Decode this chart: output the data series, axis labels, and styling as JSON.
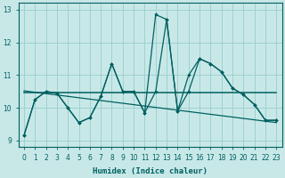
{
  "xlabel": "Humidex (Indice chaleur)",
  "xlim": [
    -0.5,
    23.5
  ],
  "ylim": [
    8.8,
    13.2
  ],
  "yticks": [
    9,
    10,
    11,
    12,
    13
  ],
  "xticks": [
    0,
    1,
    2,
    3,
    4,
    5,
    6,
    7,
    8,
    9,
    10,
    11,
    12,
    13,
    14,
    15,
    16,
    17,
    18,
    19,
    20,
    21,
    22,
    23
  ],
  "bg_color": "#c8e8e8",
  "line_color": "#006060",
  "grid_color": "#a0d0d0",
  "series1_x": [
    0,
    1,
    2,
    3,
    4,
    5,
    6,
    7,
    8,
    9,
    10,
    11,
    12,
    13,
    14,
    15,
    16,
    17,
    18,
    19,
    20,
    21,
    22,
    23
  ],
  "series1_y": [
    9.15,
    10.25,
    10.5,
    10.45,
    10.0,
    9.55,
    9.7,
    10.35,
    11.35,
    10.5,
    10.5,
    9.85,
    12.85,
    12.7,
    9.9,
    11.0,
    11.5,
    11.35,
    11.1,
    10.6,
    10.4,
    10.1,
    9.62,
    9.62
  ],
  "series2_x": [
    0,
    1,
    2,
    3,
    4,
    5,
    6,
    7,
    8,
    9,
    10,
    11,
    12,
    13,
    14,
    15,
    16,
    17,
    18,
    19,
    20,
    21,
    22,
    23
  ],
  "series2_y": [
    9.15,
    10.25,
    10.5,
    10.45,
    10.0,
    9.55,
    9.7,
    10.35,
    11.35,
    10.5,
    10.5,
    9.85,
    10.5,
    12.7,
    9.9,
    10.5,
    11.5,
    11.35,
    11.1,
    10.6,
    10.4,
    10.1,
    9.62,
    9.62
  ],
  "flat_y": 10.48,
  "decline_y_start": 10.52,
  "decline_y_end": 9.55
}
